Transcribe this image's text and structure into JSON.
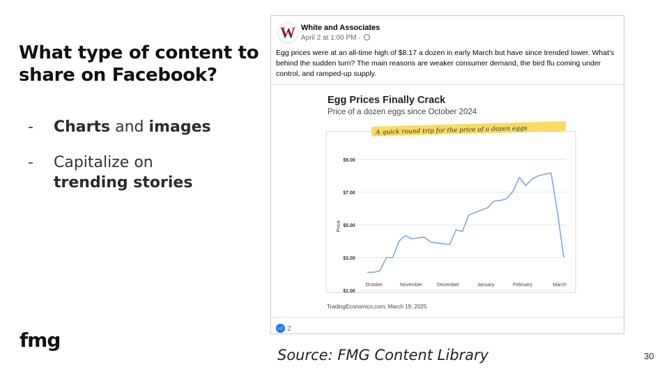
{
  "slide": {
    "title": "What type of content to share on Facebook?",
    "bullets": [
      {
        "dash": "-",
        "bold1": "Charts",
        "mid": " and ",
        "bold2": "images"
      },
      {
        "dash": "-",
        "text": "Capitalize on",
        "bold": "trending stories"
      }
    ],
    "logo": "fmg",
    "source": "Source: FMG Content Library",
    "page_number": "30"
  },
  "post": {
    "avatar_letter": "W",
    "page_name": "White and Associates",
    "meta": "April 2 at 1:00 PM ·",
    "text": "Egg prices were at an all-time high of $8.17 a dozen in early March but have since trended lower. What's behind the sudden turn? The main reasons are weaker consumer demand, the bird flu coming under control, and ramped-up supply.",
    "like_count": "2",
    "icons": {
      "like": "thumbs-up-icon",
      "privacy": "globe-icon"
    }
  },
  "chart_data": {
    "type": "line",
    "title": "Egg Prices Finally Crack",
    "subtitle": "Price of a dozen eggs since October 2024",
    "annotation": "A quick round trip for the price of a dozen eggs",
    "ylabel": "Price",
    "xlabel": "",
    "ylim": [
      1,
      9
    ],
    "yticks": [
      "$1.00",
      "$3.00",
      "$5.00",
      "$7.00",
      "$9.00"
    ],
    "xticks": [
      "October",
      "November",
      "December",
      "January",
      "February",
      "March"
    ],
    "source": "TradingEconomics.com, March 19, 2025",
    "grid": true,
    "colors": {
      "line": "#7da6dc",
      "highlight": "#f7d548"
    },
    "series": [
      {
        "values": [
          2.1,
          2.1,
          2.2,
          3.0,
          3.0,
          4.0,
          4.35,
          4.15,
          4.2,
          4.25,
          3.95,
          3.9,
          3.85,
          3.8,
          4.7,
          4.6,
          5.6,
          5.75,
          5.9,
          6.05,
          6.45,
          6.5,
          6.6,
          7.05,
          7.9,
          7.4,
          7.8,
          8.0,
          8.1,
          8.17,
          5.8,
          3.0
        ]
      }
    ]
  }
}
